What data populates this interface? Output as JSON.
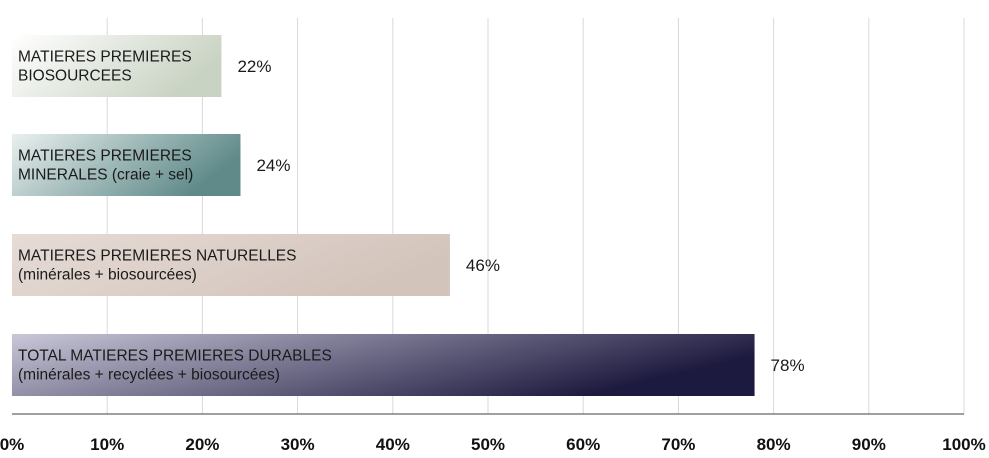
{
  "chart_data": {
    "type": "bar",
    "orientation": "horizontal",
    "title": "",
    "xlabel": "",
    "ylabel": "",
    "xlim": [
      0,
      100
    ],
    "grid": true,
    "legend": "none",
    "x_ticks": [
      "0%",
      "10%",
      "20%",
      "30%",
      "40%",
      "50%",
      "60%",
      "70%",
      "80%",
      "90%",
      "100%"
    ],
    "bars": [
      {
        "label_lines": [
          "MATIERES PREMIERES",
          "BIOSOURCEES"
        ],
        "value": 22,
        "value_label": "22%",
        "color_start": "#ffffff",
        "color_end": "#c9d3c3",
        "label_color": "#1a1a1a"
      },
      {
        "label_lines": [
          "MATIERES PREMIERES",
          "MINERALES (craie + sel)"
        ],
        "value": 24,
        "value_label": "24%",
        "color_start": "#e9f0ef",
        "color_end": "#5f8a89",
        "label_color": "#1a1a1a"
      },
      {
        "label_lines": [
          "MATIERES PREMIERES NATURELLES",
          "(minérales + biosourcées)"
        ],
        "value": 46,
        "value_label": "46%",
        "color_start": "#e6dcd6",
        "color_end": "#d3c4bb",
        "label_color": "#1a1a1a"
      },
      {
        "label_lines": [
          "TOTAL MATIERES PREMIERES DURABLES",
          "(minérales + recyclées + biosourcées)"
        ],
        "value": 78,
        "value_label": "78%",
        "color_start": "#c9c7d8",
        "color_end": "#1d1a3f",
        "label_color": "#1a1a1a"
      }
    ]
  },
  "colors": {
    "grid": "#d9d9d9",
    "axis": "#404040",
    "text": "#1a1a1a"
  }
}
